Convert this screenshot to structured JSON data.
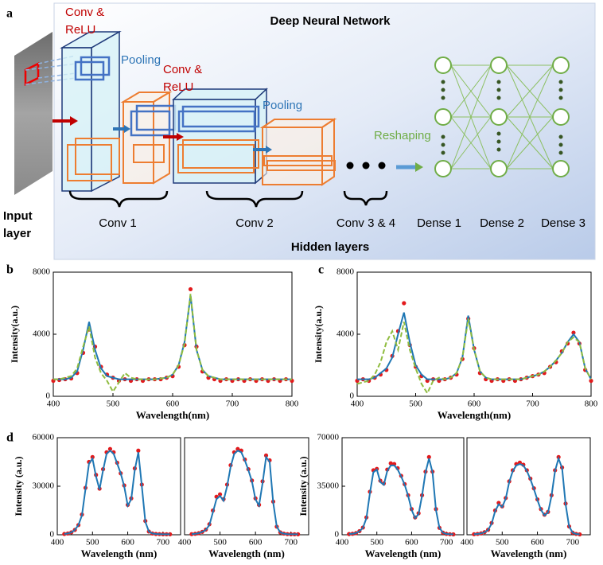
{
  "diagram": {
    "label": "a",
    "title": "Deep Neural Network",
    "conv_relu_1": [
      "Conv &",
      "ReLU"
    ],
    "pooling_1": "Pooling",
    "conv_relu_2": [
      "Conv &",
      "ReLU"
    ],
    "pooling_2": "Pooling",
    "reshaping": "Reshaping",
    "input_layer": [
      "Input",
      "layer"
    ],
    "groups": [
      "Conv 1",
      "Conv 2",
      "Conv 3 & 4",
      "Dense 1",
      "Dense 2",
      "Dense 3"
    ],
    "hidden_layers": "Hidden layers"
  },
  "chart_data": [
    {
      "type": "line",
      "label": "b",
      "xlabel": "Wavelength(nm)",
      "ylabel": "Intensity(a.u.)",
      "x": [
        400,
        410,
        420,
        430,
        440,
        450,
        460,
        470,
        480,
        490,
        500,
        510,
        520,
        530,
        540,
        550,
        560,
        570,
        580,
        590,
        600,
        610,
        620,
        630,
        640,
        650,
        660,
        670,
        680,
        690,
        700,
        710,
        720,
        730,
        740,
        750,
        760,
        770,
        780,
        790,
        800
      ],
      "xlim": [
        400,
        800
      ],
      "xticks": [
        400,
        500,
        600,
        700,
        800
      ],
      "ylim": [
        0,
        8000
      ],
      "yticks": [
        0,
        4000,
        8000
      ],
      "series": [
        {
          "color": "#e31a1c",
          "style": "markers",
          "values": [
            1000,
            1050,
            1100,
            1150,
            1500,
            2800,
            4300,
            3200,
            1900,
            1400,
            1200,
            1000,
            1100,
            1000,
            1100,
            1000,
            1100,
            1100,
            1100,
            1200,
            1300,
            1900,
            3300,
            6900,
            3200,
            1600,
            1200,
            1100,
            1000,
            1100,
            1000,
            1100,
            1000,
            1100,
            1000,
            1100,
            1000,
            1100,
            1000,
            1100,
            1000
          ]
        },
        {
          "color": "#1f77b4",
          "style": "line",
          "values": [
            1100,
            1100,
            1100,
            1200,
            1600,
            3000,
            4800,
            3000,
            1800,
            1300,
            1200,
            1100,
            1100,
            1100,
            1100,
            1100,
            1100,
            1100,
            1150,
            1200,
            1400,
            2000,
            3500,
            6500,
            3000,
            1700,
            1300,
            1200,
            1100,
            1100,
            1100,
            1100,
            1100,
            1100,
            1100,
            1100,
            1100,
            1100,
            1100,
            1100,
            1100
          ]
        },
        {
          "color": "#8fbc3f",
          "style": "dashed",
          "values": [
            1100,
            1100,
            1200,
            1300,
            1800,
            3200,
            4500,
            2500,
            1500,
            1000,
            300,
            900,
            1500,
            1200,
            1100,
            1100,
            1100,
            1100,
            1150,
            1200,
            1400,
            2000,
            3400,
            6600,
            3000,
            1700,
            1300,
            1200,
            1100,
            1100,
            1100,
            1100,
            1100,
            1100,
            1100,
            1100,
            1100,
            1100,
            1100,
            1100,
            1100
          ]
        }
      ]
    },
    {
      "type": "line",
      "label": "c",
      "xlabel": "Wavelength(nm)",
      "ylabel": "Intensity(a.u.)",
      "x": [
        400,
        410,
        420,
        430,
        440,
        450,
        460,
        470,
        480,
        490,
        500,
        510,
        520,
        530,
        540,
        550,
        560,
        570,
        580,
        590,
        600,
        610,
        620,
        630,
        640,
        650,
        660,
        670,
        680,
        690,
        700,
        710,
        720,
        730,
        740,
        750,
        760,
        770,
        780,
        790,
        800
      ],
      "xlim": [
        400,
        800
      ],
      "xticks": [
        400,
        500,
        600,
        700,
        800
      ],
      "ylim": [
        0,
        8000
      ],
      "yticks": [
        0,
        4000,
        8000
      ],
      "series": [
        {
          "color": "#e31a1c",
          "style": "markers",
          "values": [
            1000,
            1100,
            1000,
            1200,
            1400,
            1700,
            2600,
            4200,
            6000,
            3300,
            1900,
            1300,
            1000,
            1100,
            1000,
            1100,
            1200,
            1400,
            2400,
            5000,
            3100,
            1500,
            1100,
            1000,
            1100,
            1000,
            1100,
            1000,
            1100,
            1200,
            1300,
            1400,
            1500,
            1900,
            2200,
            2900,
            3400,
            4100,
            3400,
            1700,
            1000
          ]
        },
        {
          "color": "#1f77b4",
          "style": "line",
          "values": [
            1100,
            1100,
            1100,
            1200,
            1500,
            1800,
            2500,
            4000,
            5400,
            3500,
            2000,
            1400,
            1100,
            1100,
            1100,
            1100,
            1200,
            1500,
            2500,
            5200,
            3000,
            1600,
            1200,
            1100,
            1100,
            1100,
            1100,
            1100,
            1100,
            1200,
            1300,
            1400,
            1600,
            1900,
            2300,
            2800,
            3500,
            4000,
            3500,
            1800,
            1100
          ]
        },
        {
          "color": "#8fbc3f",
          "style": "dashed",
          "values": [
            800,
            900,
            1000,
            1400,
            2200,
            3500,
            4200,
            3000,
            4800,
            3000,
            1800,
            800,
            200,
            1000,
            1200,
            1100,
            1200,
            1500,
            2500,
            5000,
            3000,
            1600,
            1200,
            1100,
            1100,
            1100,
            1100,
            1100,
            1100,
            1200,
            1300,
            1400,
            1600,
            1900,
            2300,
            2800,
            3500,
            3800,
            3500,
            1800,
            1100
          ]
        }
      ]
    },
    {
      "type": "line",
      "label": "d",
      "xlabel": "Wavelength (nm)",
      "ylabel": "Intensity (a.u.)",
      "x": [
        420,
        430,
        440,
        450,
        460,
        470,
        480,
        490,
        500,
        510,
        520,
        530,
        540,
        550,
        560,
        570,
        580,
        590,
        600,
        610,
        620,
        630,
        640,
        650,
        660,
        670,
        680,
        690,
        700,
        710,
        720
      ],
      "xlim": [
        400,
        750
      ],
      "xticks": [
        400,
        500,
        600,
        700
      ],
      "ylim": [
        0,
        60000
      ],
      "yticks": [
        0,
        30000,
        60000
      ],
      "series": [
        {
          "color": "#e31a1c",
          "style": "markers",
          "values": [
            500,
            800,
            1500,
            3000,
            6000,
            12500,
            29000,
            45000,
            48000,
            37000,
            28500,
            40500,
            51000,
            53000,
            51000,
            44500,
            38000,
            30500,
            18500,
            22500,
            41000,
            52000,
            31000,
            8500,
            2000,
            800,
            500,
            400,
            300,
            300,
            300
          ]
        },
        {
          "color": "#1f77b4",
          "style": "line",
          "values": [
            500,
            800,
            1500,
            3000,
            6000,
            12000,
            28000,
            44000,
            47000,
            36000,
            28000,
            40000,
            50000,
            52000,
            50000,
            44000,
            38000,
            30000,
            18000,
            22000,
            40000,
            51000,
            30000,
            8000,
            2000,
            800,
            500,
            400,
            300,
            300,
            300
          ]
        }
      ]
    },
    {
      "type": "line",
      "xlabel": "Wavelength (nm)",
      "x": [
        420,
        430,
        440,
        450,
        460,
        470,
        480,
        490,
        500,
        510,
        520,
        530,
        540,
        550,
        560,
        570,
        580,
        590,
        600,
        610,
        620,
        630,
        640,
        650,
        660,
        670,
        680,
        690,
        700,
        710,
        720
      ],
      "xlim": [
        400,
        750
      ],
      "xticks": [
        400,
        500,
        600,
        700
      ],
      "ylim": [
        0,
        60000
      ],
      "series": [
        {
          "color": "#e31a1c",
          "style": "markers",
          "values": [
            400,
            600,
            1000,
            1800,
            3200,
            6500,
            15000,
            23500,
            25000,
            22000,
            31000,
            43000,
            51000,
            53000,
            52000,
            46500,
            40500,
            33500,
            22500,
            18500,
            33000,
            49000,
            46000,
            20500,
            5000,
            1500,
            700,
            400,
            300,
            300,
            300
          ]
        },
        {
          "color": "#1f77b4",
          "style": "line",
          "values": [
            400,
            600,
            1000,
            1800,
            3000,
            6000,
            14000,
            22000,
            24000,
            21000,
            30000,
            42000,
            50000,
            52000,
            51000,
            46000,
            40000,
            33000,
            22000,
            18000,
            32000,
            48000,
            45000,
            20000,
            5000,
            1500,
            700,
            400,
            300,
            300,
            300
          ]
        }
      ]
    },
    {
      "type": "line",
      "xlabel": "Wavelength (nm)",
      "ylabel": "Intensity (a.u.)",
      "x": [
        420,
        430,
        440,
        450,
        460,
        470,
        480,
        490,
        500,
        510,
        520,
        530,
        540,
        550,
        560,
        570,
        580,
        590,
        600,
        610,
        620,
        630,
        640,
        650,
        660,
        670,
        680,
        690,
        700,
        710,
        720
      ],
      "xlim": [
        400,
        750
      ],
      "xticks": [
        400,
        500,
        600,
        700
      ],
      "ylim": [
        0,
        70000
      ],
      "yticks": [
        0,
        35000,
        70000
      ],
      "series": [
        {
          "color": "#e31a1c",
          "style": "markers",
          "values": [
            500,
            700,
            1200,
            2600,
            5200,
            12500,
            31000,
            46500,
            47500,
            39000,
            37000,
            47000,
            51500,
            51000,
            48000,
            42500,
            36500,
            28500,
            18500,
            12500,
            15500,
            28500,
            45500,
            56000,
            45500,
            18500,
            5000,
            1500,
            600,
            400,
            300
          ]
        },
        {
          "color": "#1f77b4",
          "style": "line",
          "values": [
            500,
            700,
            1200,
            2500,
            5000,
            12000,
            30000,
            45000,
            47000,
            38000,
            36000,
            46000,
            50000,
            50000,
            47000,
            42000,
            36000,
            28000,
            18000,
            12000,
            15000,
            28000,
            45000,
            55000,
            45000,
            18000,
            5000,
            1500,
            600,
            400,
            300
          ]
        }
      ]
    },
    {
      "type": "line",
      "xlabel": "Wavelength (nm)",
      "x": [
        420,
        430,
        440,
        450,
        460,
        470,
        480,
        490,
        500,
        510,
        520,
        530,
        540,
        550,
        560,
        570,
        580,
        590,
        600,
        610,
        620,
        630,
        640,
        650,
        660,
        670,
        680,
        690,
        700,
        710,
        720
      ],
      "xlim": [
        400,
        750
      ],
      "xticks": [
        400,
        500,
        600,
        700
      ],
      "ylim": [
        0,
        70000
      ],
      "series": [
        {
          "color": "#e31a1c",
          "style": "markers",
          "values": [
            400,
            600,
            1000,
            1900,
            3600,
            8500,
            17500,
            23000,
            20500,
            26500,
            38500,
            46500,
            51000,
            52000,
            50500,
            46500,
            40500,
            33500,
            25500,
            18500,
            14500,
            16500,
            28500,
            46500,
            56000,
            48500,
            22500,
            6000,
            1500,
            600,
            300
          ]
        },
        {
          "color": "#1f77b4",
          "style": "line",
          "values": [
            400,
            600,
            1000,
            1800,
            3500,
            8000,
            17000,
            22000,
            20000,
            26000,
            38000,
            46000,
            50000,
            51000,
            50000,
            46000,
            40000,
            33000,
            25000,
            18000,
            14000,
            16000,
            28000,
            46000,
            55000,
            48000,
            22000,
            6000,
            1500,
            600,
            300
          ]
        }
      ]
    }
  ]
}
